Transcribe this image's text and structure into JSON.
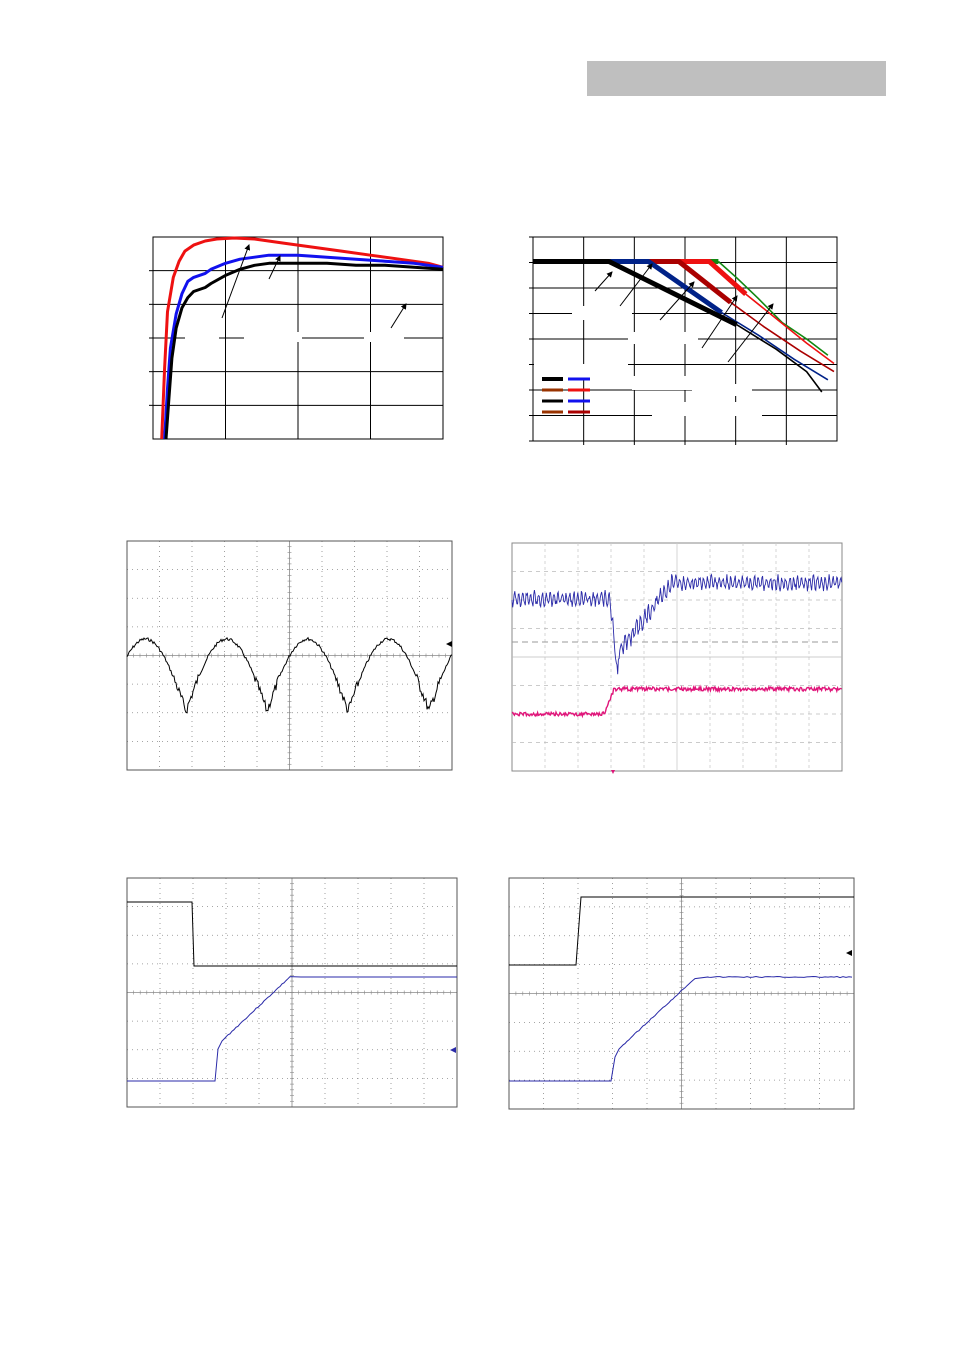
{
  "page": {
    "header_bar_color": "#bfbfbf"
  },
  "colors": {
    "red": "#ee1111",
    "blue": "#1111ee",
    "black": "#000000",
    "green": "#118811",
    "darkblue": "#002288",
    "brown": "#993300",
    "darkred": "#aa0000",
    "scope_blue": "#2a2aa8",
    "scope_magenta": "#e0157a",
    "scope_grid": "#888888"
  },
  "chart_data": [
    {
      "type": "line",
      "grid": true,
      "xlim": [
        0,
        100
      ],
      "ylim": [
        0,
        100
      ],
      "series": [
        {
          "color": "red",
          "x": [
            3,
            4,
            5,
            7,
            9,
            11,
            14,
            18,
            22,
            28,
            35,
            45,
            55,
            65,
            75,
            85,
            95,
            100
          ],
          "y": [
            0,
            35,
            63,
            80,
            88,
            93,
            96,
            98,
            99,
            99.5,
            99,
            97,
            95,
            93,
            91,
            89,
            87,
            85
          ]
        },
        {
          "color": "blue",
          "x": [
            4,
            5,
            6,
            8,
            10,
            12,
            14,
            16,
            18,
            20,
            25,
            30,
            35,
            40,
            50,
            60,
            70,
            80,
            90,
            100
          ],
          "y": [
            0,
            25,
            45,
            62,
            72,
            78,
            80,
            81,
            82,
            84,
            87,
            89,
            90,
            91,
            91,
            90,
            89,
            88,
            87,
            85
          ]
        },
        {
          "color": "black",
          "x": [
            4.5,
            5.5,
            6.5,
            8,
            10,
            12,
            14,
            16,
            18,
            20,
            25,
            30,
            35,
            40,
            50,
            60,
            70,
            80,
            90,
            100
          ],
          "y": [
            0,
            20,
            40,
            55,
            65,
            70,
            73,
            74,
            75,
            77,
            81,
            84,
            86,
            87,
            87,
            87,
            86,
            86,
            85,
            84
          ]
        }
      ]
    },
    {
      "type": "line",
      "grid": true,
      "xlim": [
        0,
        100
      ],
      "ylim": [
        0,
        100
      ],
      "series": [
        {
          "color": "green",
          "width": 5,
          "x": [
            0,
            61
          ],
          "y": [
            88,
            88
          ]
        },
        {
          "color": "green",
          "width": 1.6,
          "x": [
            61,
            67,
            74,
            82,
            90,
            97
          ],
          "y": [
            88,
            80,
            70,
            58,
            50,
            42
          ]
        },
        {
          "color": "red",
          "width": 5,
          "x": [
            0,
            58,
            70
          ],
          "y": [
            88,
            88,
            72
          ]
        },
        {
          "color": "red",
          "width": 1.6,
          "x": [
            70,
            80,
            90,
            99
          ],
          "y": [
            72,
            60,
            48,
            38
          ]
        },
        {
          "color": "darkred",
          "width": 5,
          "x": [
            0,
            48,
            65
          ],
          "y": [
            88,
            88,
            68
          ]
        },
        {
          "color": "darkred",
          "width": 1.6,
          "x": [
            65,
            76,
            88,
            99
          ],
          "y": [
            68,
            56,
            44,
            34
          ]
        },
        {
          "color": "darkblue",
          "width": 5,
          "x": [
            0,
            38,
            62
          ],
          "y": [
            88,
            88,
            63
          ]
        },
        {
          "color": "darkblue",
          "width": 1.6,
          "x": [
            62,
            74,
            86,
            97
          ],
          "y": [
            63,
            52,
            40,
            30
          ]
        },
        {
          "color": "black",
          "width": 5,
          "x": [
            0,
            25,
            67
          ],
          "y": [
            88,
            88,
            57
          ]
        },
        {
          "color": "black",
          "width": 1.6,
          "x": [
            67,
            80,
            90,
            95
          ],
          "y": [
            57,
            45,
            34,
            24
          ]
        }
      ],
      "legend": {
        "placement": "bottom-left",
        "swatches": [
          [
            "black",
            "blue"
          ],
          [
            "brown",
            "red"
          ],
          [
            "black",
            "blue"
          ],
          [
            "brown",
            "darkred"
          ]
        ]
      }
    }
  ],
  "scopes": [
    {
      "id": "ripple",
      "trace_colors": [
        "black"
      ],
      "marker": "right-arrow"
    },
    {
      "id": "transient",
      "trace_colors": [
        "scope_blue",
        "scope_magenta"
      ],
      "marker": "none"
    },
    {
      "id": "turnoff",
      "trace_colors": [
        "black",
        "scope_blue"
      ],
      "marker": "right-arrow"
    },
    {
      "id": "turnon",
      "trace_colors": [
        "black",
        "scope_blue"
      ],
      "marker": "right-arrow"
    }
  ]
}
